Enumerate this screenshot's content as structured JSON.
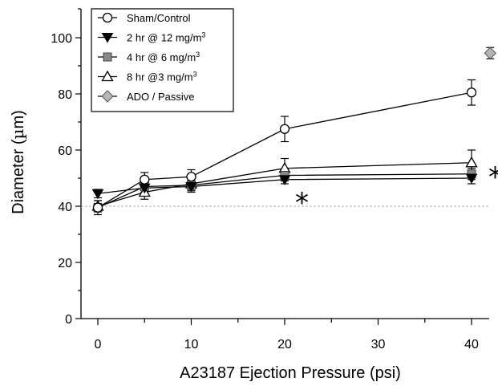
{
  "chart_data": {
    "type": "line",
    "xlabel": "A23187 Ejection Pressure (psi)",
    "ylabel_prefix": "Diameter (",
    "ylabel_unit_mu": "µ",
    "ylabel_unit_m": "m)",
    "xlim": [
      -2,
      43
    ],
    "ylim": [
      0,
      110
    ],
    "x_ticks": [
      "0",
      "10",
      "20",
      "30",
      "40"
    ],
    "y_ticks": [
      "0",
      "20",
      "40",
      "60",
      "80",
      "100"
    ],
    "reference_line_y": 40,
    "legend_position": "top-left",
    "series": [
      {
        "name": "Sham/Control",
        "marker": "circle-open",
        "color": "#000000",
        "x": [
          0,
          5,
          10,
          20,
          40
        ],
        "y": [
          39.5,
          49.5,
          50.5,
          67.5,
          80.5
        ],
        "err": [
          2.5,
          2.5,
          2.5,
          4.5,
          4.5
        ]
      },
      {
        "name_prefix": "2 hr @ 12 mg/m",
        "name_sup": "3",
        "marker": "triangle-down-filled",
        "color": "#000000",
        "x": [
          0,
          5,
          10,
          20,
          40
        ],
        "y": [
          44.5,
          46.5,
          47,
          49.5,
          50
        ],
        "err": [
          1.5,
          2,
          2,
          1.5,
          2
        ]
      },
      {
        "name_prefix": "4 hr @ 6 mg/m",
        "name_sup": "3",
        "marker": "square-gray",
        "color": "#999999",
        "x": [
          0,
          5,
          10,
          20,
          40
        ],
        "y": [
          39.5,
          47,
          47.5,
          51,
          51.5
        ],
        "err": [
          1.5,
          2,
          2,
          2,
          2
        ]
      },
      {
        "name_prefix": "8 hr @3 mg/m",
        "name_sup": "3",
        "marker": "triangle-up-open",
        "color": "#000000",
        "x": [
          0,
          5,
          10,
          20,
          40
        ],
        "y": [
          40,
          45,
          48,
          53.5,
          55.5
        ],
        "err": [
          2,
          2.5,
          2,
          3.5,
          4.5
        ]
      },
      {
        "name": "ADO / Passive",
        "marker": "diamond-gray",
        "color": "#aaaaaa",
        "x": [
          42
        ],
        "y": [
          94.5
        ],
        "err": [
          2
        ]
      }
    ],
    "annotations": [
      "*",
      "*"
    ]
  }
}
